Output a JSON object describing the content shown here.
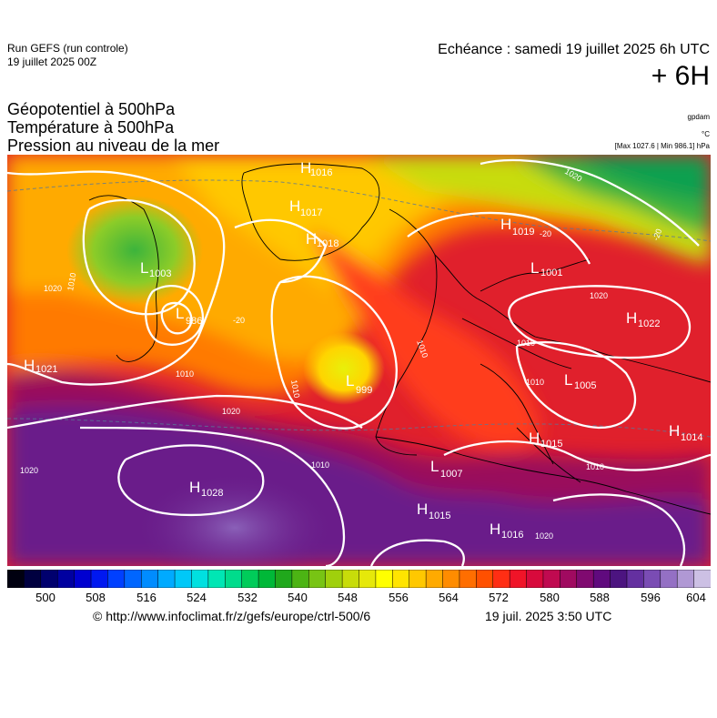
{
  "header": {
    "run_line1": "Run GEFS (run controle)",
    "run_line2": "19 juillet 2025 00Z",
    "echeance": "Echéance : samedi 19 juillet 2025 6h UTC",
    "offset": "+ 6H",
    "title_lines": [
      "Géopotentiel à 500hPa",
      "Température à 500hPa",
      "Pression au niveau de la mer"
    ],
    "unit_gpdam": "gpdam",
    "unit_temp": "°C",
    "maxmin": "[Max 1027.6 | Min 986.1] hPa"
  },
  "pressure_centers": [
    {
      "type": "H",
      "value": "1016"
    },
    {
      "type": "H",
      "value": "1017"
    },
    {
      "type": "H",
      "value": "1018"
    },
    {
      "type": "H",
      "value": "1019"
    },
    {
      "type": "L",
      "value": "1001"
    },
    {
      "type": "H",
      "value": "1022"
    },
    {
      "type": "L",
      "value": "1003"
    },
    {
      "type": "L",
      "value": "986"
    },
    {
      "type": "H",
      "value": "1021"
    },
    {
      "type": "L",
      "value": "999"
    },
    {
      "type": "L",
      "value": "1005"
    },
    {
      "type": "H",
      "value": "1014"
    },
    {
      "type": "H",
      "value": "1015"
    },
    {
      "type": "L",
      "value": "1007"
    },
    {
      "type": "H",
      "value": "1028"
    },
    {
      "type": "H",
      "value": "1015"
    },
    {
      "type": "H",
      "value": "1016"
    }
  ],
  "isobar_labels": [
    "1010",
    "1010",
    "1010",
    "1020",
    "1010",
    "1020",
    "1010",
    "1020",
    "1010",
    "1010",
    "1020",
    "1020",
    "1020",
    "1010"
  ],
  "temperature_labels": [
    "-20",
    "-20",
    "-20"
  ],
  "legend": {
    "ticks": [
      "500",
      "508",
      "516",
      "524",
      "532",
      "540",
      "548",
      "556",
      "564",
      "572",
      "580",
      "588",
      "596",
      "604"
    ],
    "colors": [
      "#000010",
      "#000040",
      "#00006e",
      "#0000a0",
      "#0000d0",
      "#0018f0",
      "#0040ff",
      "#0066ff",
      "#008cff",
      "#00aaff",
      "#00c8f8",
      "#00e0e0",
      "#00e6b4",
      "#00dc8c",
      "#00cc5a",
      "#00b838",
      "#20a81c",
      "#4cb414",
      "#78c414",
      "#a0d00c",
      "#c8dc0a",
      "#e6e80a",
      "#ffff00",
      "#ffe400",
      "#ffc800",
      "#ffaa00",
      "#ff8c00",
      "#ff6e00",
      "#ff5000",
      "#ff2e14",
      "#f01428",
      "#d80a3c",
      "#c00a50",
      "#a00a60",
      "#800a70",
      "#600a7e",
      "#4c1480",
      "#6430a0",
      "#7a4cb4",
      "#9470c4",
      "#b098d4",
      "#ccc0e4"
    ]
  },
  "footer": {
    "credit": "© http://www.infoclimat.fr/z/gefs/europe/ctrl-500/6",
    "timestamp": "19 juil. 2025  3:50 UTC"
  }
}
